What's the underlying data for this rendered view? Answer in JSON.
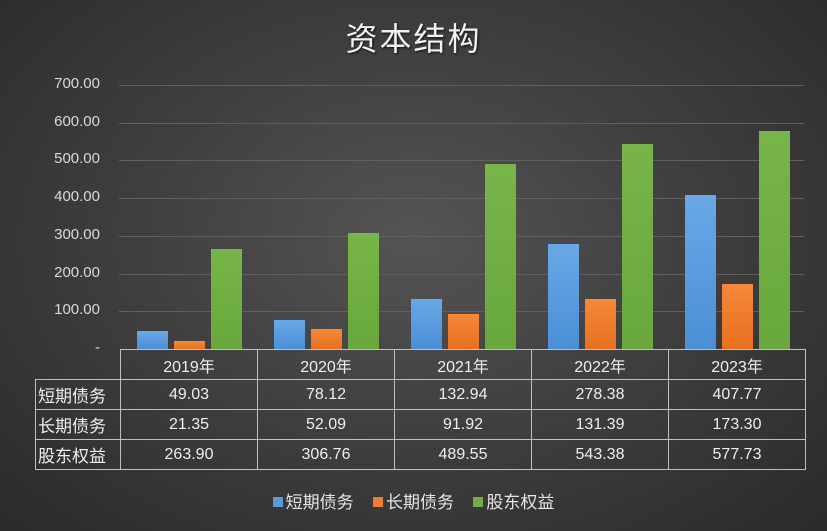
{
  "title": "资本结构",
  "y_axis": {
    "ticks": [
      "700.00",
      "600.00",
      "500.00",
      "400.00",
      "300.00",
      "200.00",
      "100.00",
      "-"
    ]
  },
  "legend": [
    {
      "label": "短期债务",
      "color": "#5b9bd5"
    },
    {
      "label": "长期债务",
      "color": "#ed7d31"
    },
    {
      "label": "股东权益",
      "color": "#70ad47"
    }
  ],
  "table": {
    "header": [
      "2019年",
      "2020年",
      "2021年",
      "2022年",
      "2023年"
    ],
    "rows": [
      {
        "label": "短期债务",
        "values": [
          "49.03",
          "78.12",
          "132.94",
          "278.38",
          "407.77"
        ]
      },
      {
        "label": "长期债务",
        "values": [
          "21.35",
          "52.09",
          "91.92",
          "131.39",
          "173.30"
        ]
      },
      {
        "label": "股东权益",
        "values": [
          "263.90",
          "306.76",
          "489.55",
          "543.38",
          "577.73"
        ]
      }
    ]
  },
  "chart_data": {
    "type": "bar",
    "title": "资本结构",
    "categories": [
      "2019年",
      "2020年",
      "2021年",
      "2022年",
      "2023年"
    ],
    "series": [
      {
        "name": "短期债务",
        "color": "#5b9bd5",
        "values": [
          49.03,
          78.12,
          132.94,
          278.38,
          407.77
        ]
      },
      {
        "name": "长期债务",
        "color": "#ed7d31",
        "values": [
          21.35,
          52.09,
          91.92,
          131.39,
          173.3
        ]
      },
      {
        "name": "股东权益",
        "color": "#70ad47",
        "values": [
          263.9,
          306.76,
          489.55,
          543.38,
          577.73
        ]
      }
    ],
    "xlabel": "",
    "ylabel": "",
    "ylim": [
      0,
      700
    ],
    "yticks": [
      0,
      100,
      200,
      300,
      400,
      500,
      600,
      700
    ],
    "grid": true,
    "legend_position": "bottom",
    "data_table": true
  }
}
